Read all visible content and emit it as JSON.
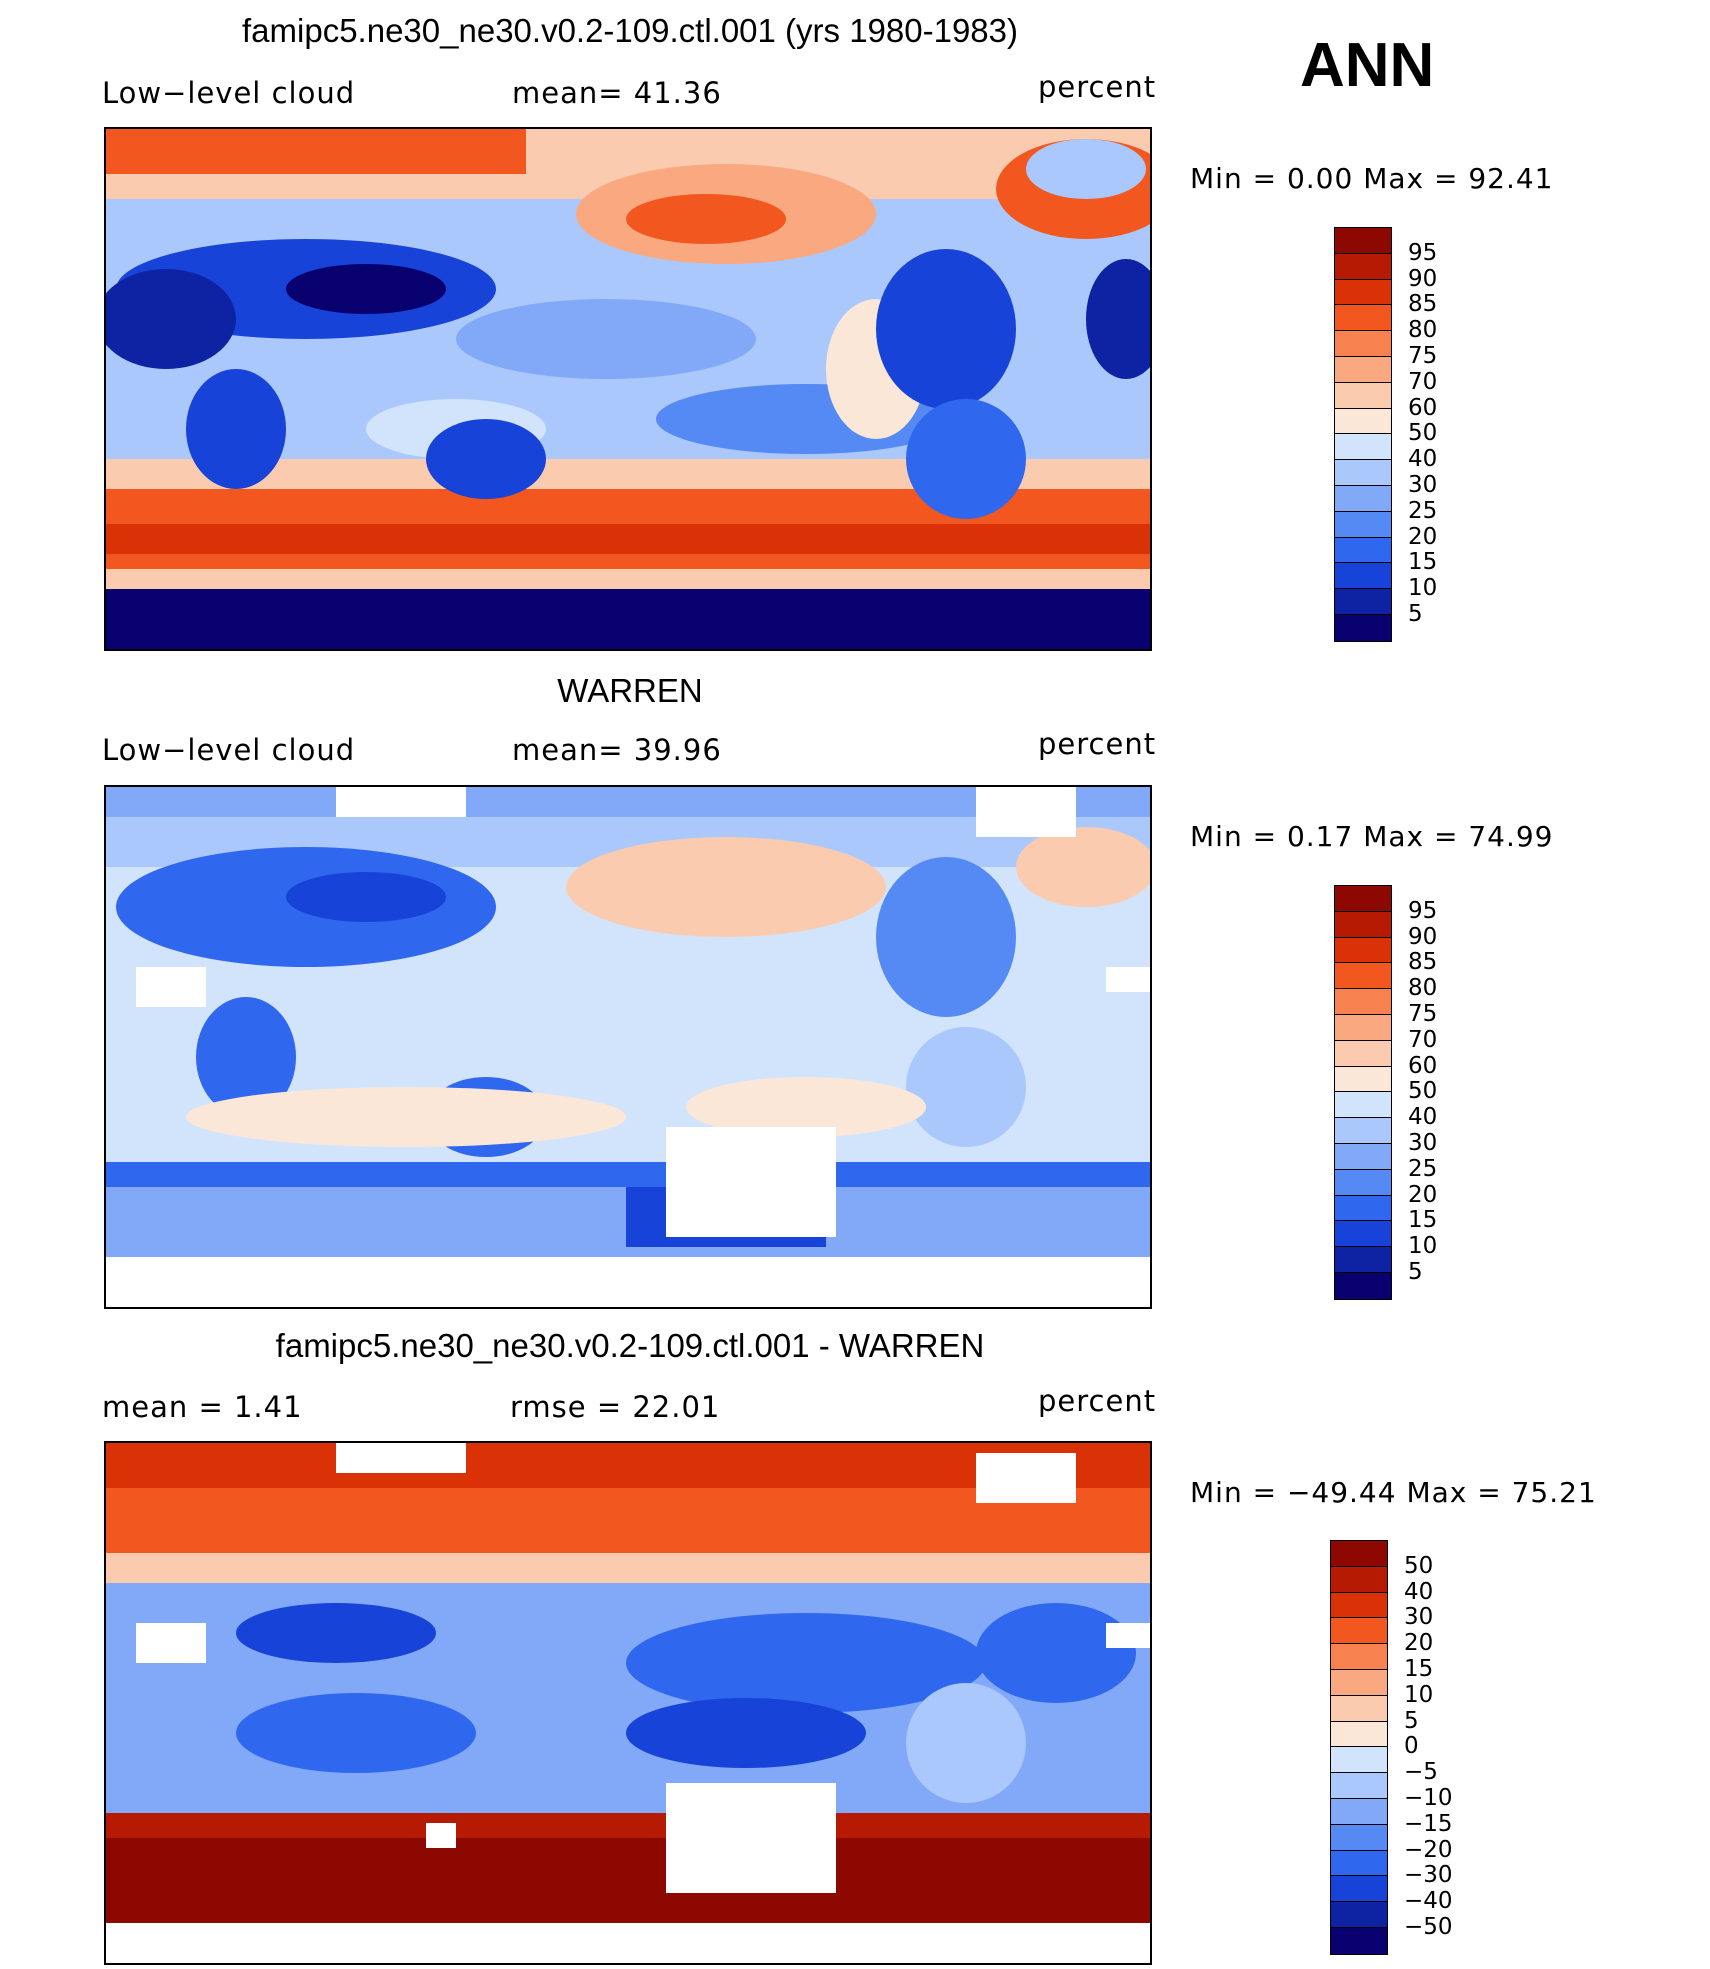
{
  "season": "ANN",
  "colors": {
    "abs_scale": [
      "#08006e",
      "#0d23a3",
      "#1843d8",
      "#2f68ee",
      "#5589f4",
      "#82a9f7",
      "#aac8fb",
      "#d1e4fc",
      "#fbe7d8",
      "#fbcbb0",
      "#f9a880",
      "#f7814f",
      "#f2571f",
      "#da3107",
      "#b71a03",
      "#8c0800"
    ],
    "diff_scale": [
      "#08006e",
      "#0d23a3",
      "#1843d8",
      "#2f68ee",
      "#5589f4",
      "#82a9f7",
      "#aac8fb",
      "#d1e4fc",
      "#fbe7d8",
      "#fbcbb0",
      "#f9a880",
      "#f7814f",
      "#f2571f",
      "#da3107",
      "#b71a03",
      "#8c0800"
    ]
  },
  "panels": [
    {
      "title": "famipc5.ne30_ne30.v0.2-109.ctl.001 (yrs 1980-1983)",
      "left_label": "Low−level cloud",
      "mid_label": "mean=   41.36",
      "units": "percent",
      "minmax": "Min  =     0.00  Max  =    92.41",
      "colorbar_labels": [
        "95",
        "90",
        "85",
        "80",
        "75",
        "70",
        "60",
        "50",
        "40",
        "30",
        "25",
        "20",
        "15",
        "10",
        "5"
      ]
    },
    {
      "title": "WARREN",
      "left_label": "Low−level cloud",
      "mid_label": "mean=   39.96",
      "units": "percent",
      "minmax": "Min  =     0.17  Max  =    74.99",
      "colorbar_labels": [
        "95",
        "90",
        "85",
        "80",
        "75",
        "70",
        "60",
        "50",
        "40",
        "30",
        "25",
        "20",
        "15",
        "10",
        "5"
      ]
    },
    {
      "title": "famipc5.ne30_ne30.v0.2-109.ctl.001 - WARREN",
      "left_label": "mean  =     1.41",
      "mid_label": "rmse  =    22.01",
      "units": "percent",
      "minmax": "Min  =  −49.44  Max  =    75.21",
      "colorbar_labels": [
        "50",
        "40",
        "30",
        "20",
        "15",
        "10",
        "5",
        "0",
        "−5",
        "−10",
        "−15",
        "−20",
        "−30",
        "−40",
        "−50"
      ]
    }
  ]
}
